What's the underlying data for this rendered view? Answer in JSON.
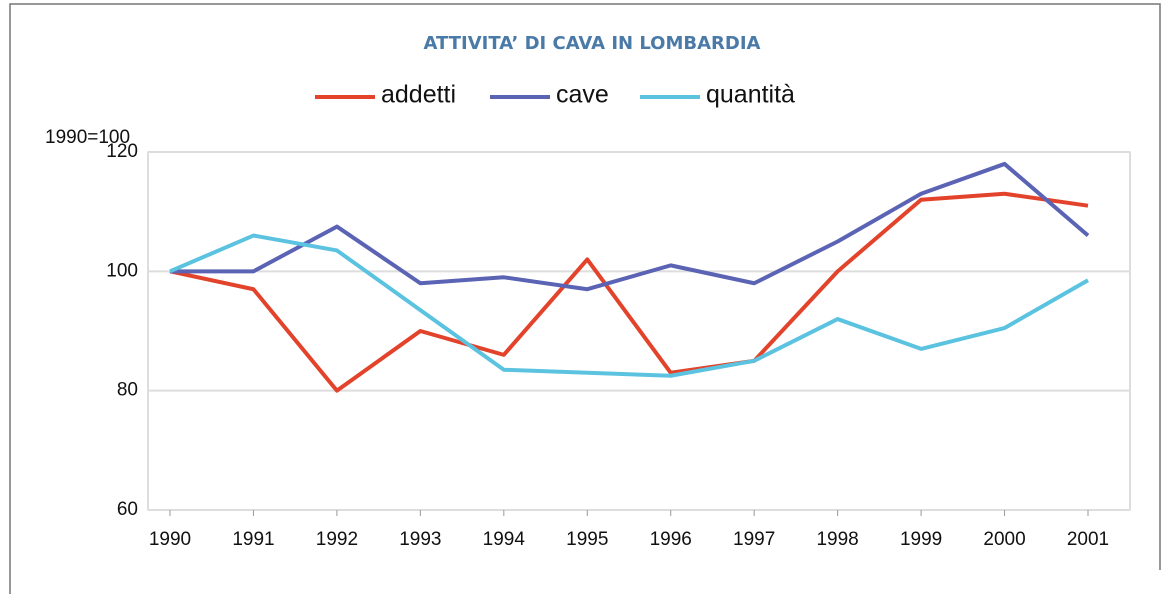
{
  "chart_data": {
    "type": "line",
    "title": "ATTIVITA’ DI CAVA IN LOMBARDIA",
    "y_label": "1990=100",
    "categories": [
      "1990",
      "1991",
      "1992",
      "1993",
      "1994",
      "1995",
      "1996",
      "1997",
      "1998",
      "1999",
      "2000",
      "2001"
    ],
    "series": [
      {
        "name": "addetti",
        "color": "#e2432a",
        "values": [
          100,
          97,
          80,
          90,
          86,
          102,
          83,
          85,
          100,
          112,
          113,
          111
        ]
      },
      {
        "name": "cave",
        "color": "#5b63b4",
        "values": [
          100,
          100,
          107.5,
          98,
          99,
          97,
          101,
          98,
          105,
          113,
          118,
          106
        ]
      },
      {
        "name": "quantità",
        "color": "#5bc3e0",
        "values": [
          100,
          106,
          103.5,
          93.5,
          83.5,
          83,
          82.5,
          85,
          92,
          87,
          90.5,
          98.5
        ]
      }
    ],
    "ylim": [
      60,
      120
    ],
    "yticks": [
      60,
      80,
      100,
      120
    ],
    "grid": true
  }
}
